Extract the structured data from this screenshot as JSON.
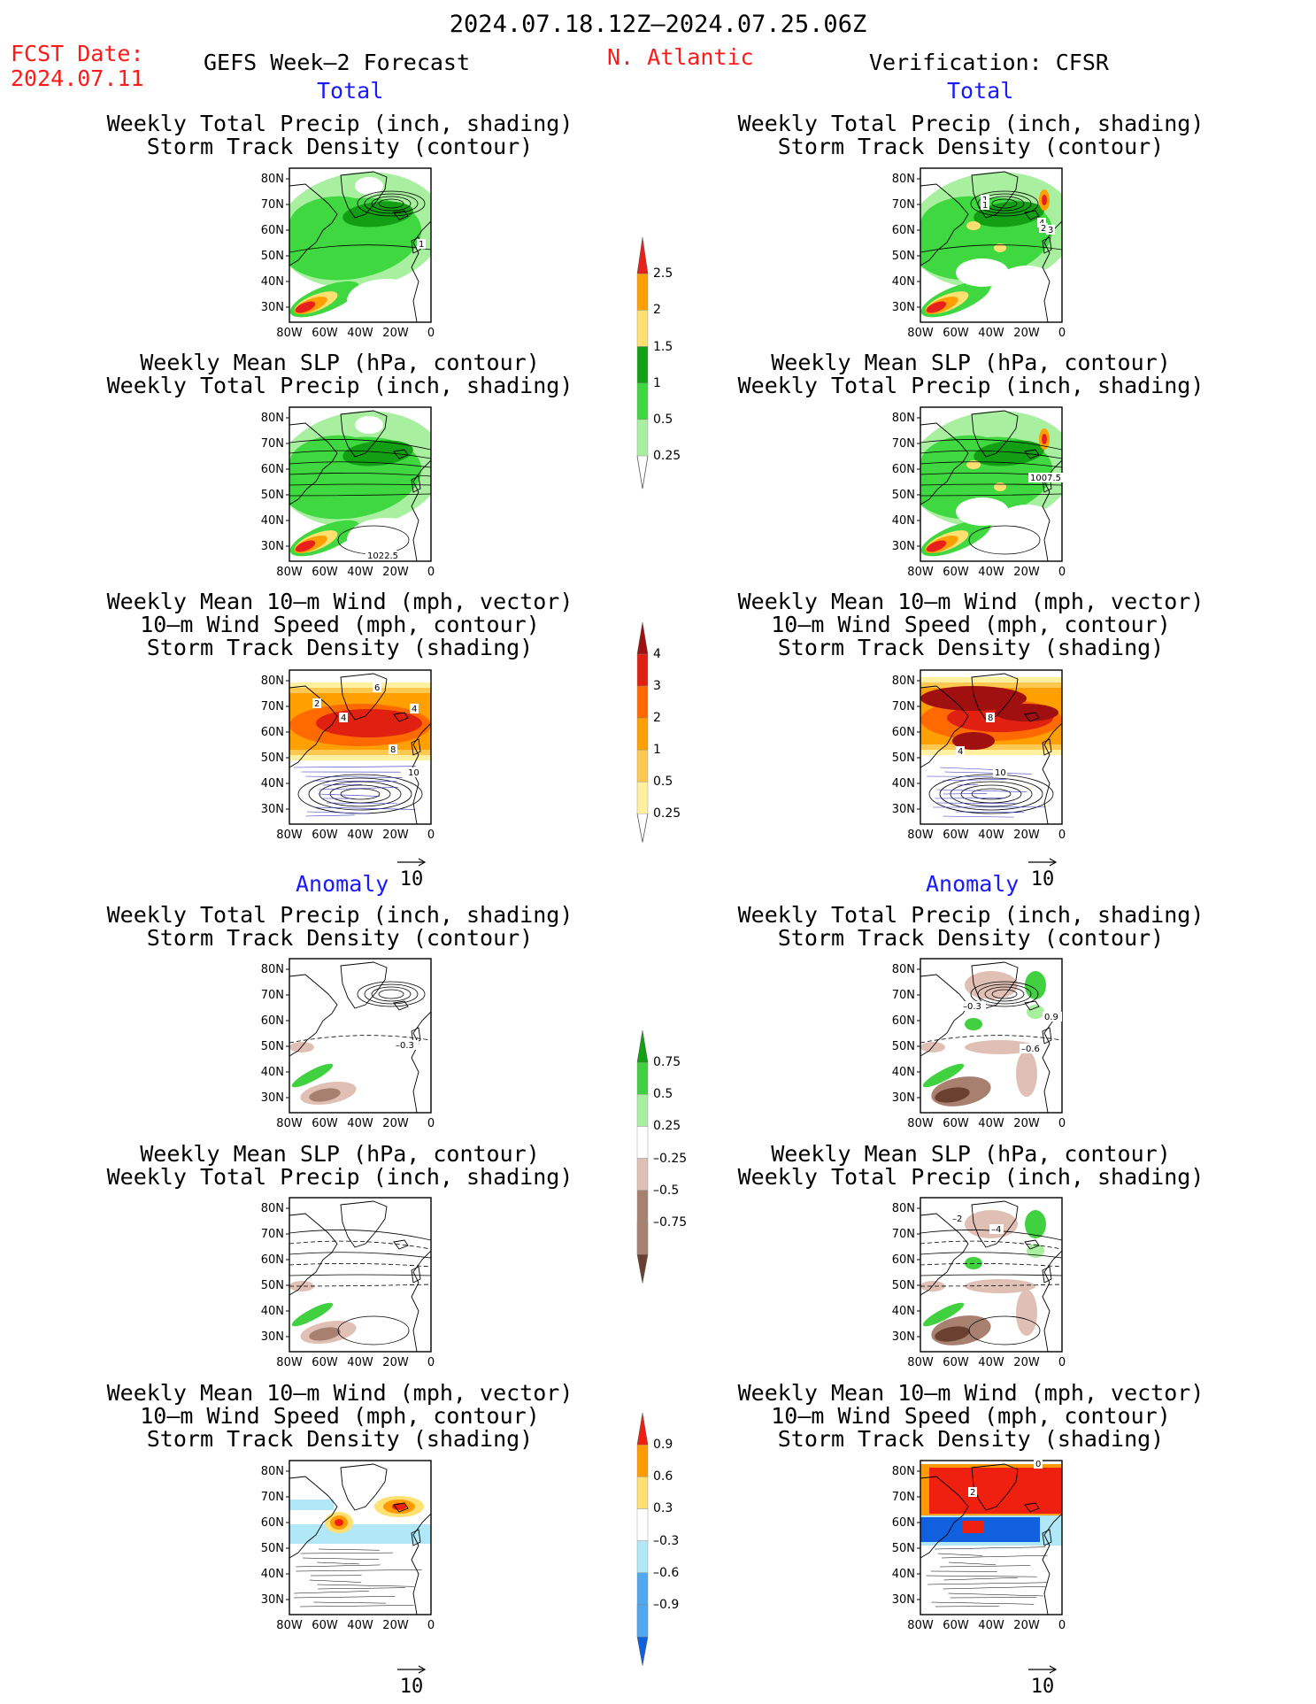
{
  "header": {
    "date_range": "2024.07.18.12Z–2024.07.25.06Z",
    "fcst_label": "FCST Date:",
    "fcst_date": "2024.07.11",
    "forecast_title": "GEFS Week–2 Forecast",
    "region": "N. Atlantic",
    "verification": "Verification: CFSR"
  },
  "sections": {
    "total": "Total",
    "anomaly": "Anomaly"
  },
  "titles": {
    "precip_std": [
      "Weekly Total Precip (inch, shading)",
      "Storm Track Density (contour)"
    ],
    "slp_precip": [
      "Weekly Mean SLP (hPa, contour)",
      "Weekly Total Precip (inch, shading)"
    ],
    "wind": [
      "Weekly Mean 10–m Wind (mph, vector)",
      "10–m Wind Speed (mph, contour)",
      "Storm Track Density (shading)"
    ]
  },
  "axes": {
    "lat": [
      "80N",
      "70N",
      "60N",
      "50N",
      "40N",
      "30N"
    ],
    "lon": [
      "80W",
      "60W",
      "40W",
      "20W",
      "0"
    ]
  },
  "vector_ref": "10",
  "map_labels": {
    "gefs_total_precip": [
      "1"
    ],
    "cfsr_total_precip": [
      "1",
      "1",
      "4",
      "2",
      "3"
    ],
    "gefs_total_slp": [
      "1022.5"
    ],
    "cfsr_total_slp": [
      "1007.5"
    ],
    "gefs_total_wind": [
      "2",
      "6",
      "4",
      "4",
      "8",
      "10"
    ],
    "cfsr_total_wind": [
      "8",
      "4",
      "10"
    ],
    "gefs_anom_precip": [
      "–0.3"
    ],
    "cfsr_anom_precip": [
      "–0.3",
      "0.9",
      "–0.6"
    ],
    "cfsr_anom_slp": [
      "–2",
      "–4"
    ],
    "cfsr_anom_wind": [
      "0",
      "2"
    ]
  },
  "colorbars": {
    "total_precip": {
      "labels": [
        "2.5",
        "2",
        "1.5",
        "1",
        "0.5",
        "0.25"
      ],
      "colors": [
        "#e8201c",
        "#ff9f00",
        "#ffe070",
        "#139f14",
        "#40d840",
        "#a8f0a0"
      ]
    },
    "total_storm": {
      "labels": [
        "4",
        "3",
        "2",
        "1",
        "0.5",
        "0.25"
      ],
      "colors": [
        "#a01010",
        "#e02010",
        "#ff6a00",
        "#ffa000",
        "#ffc850",
        "#fff0a0"
      ]
    },
    "anom_precip": {
      "labels": [
        "0.75",
        "0.5",
        "0.25",
        "–0.25",
        "–0.5",
        "–0.75"
      ],
      "colors": [
        "#13a013",
        "#40d040",
        "#a8f0a0",
        "#ffffff",
        "#e0c0b4",
        "#a88070",
        "#6a4030"
      ]
    },
    "anom_storm": {
      "labels": [
        "0.9",
        "0.6",
        "0.3",
        "–0.3",
        "–0.6",
        "–0.9"
      ],
      "colors": [
        "#f02010",
        "#ff9a00",
        "#ffe070",
        "#ffffff",
        "#b0e8f8",
        "#50a8f0",
        "#1060e0"
      ]
    }
  },
  "colors": {
    "red_text": "#ff1a1a",
    "blue_text": "#1a1aff"
  }
}
